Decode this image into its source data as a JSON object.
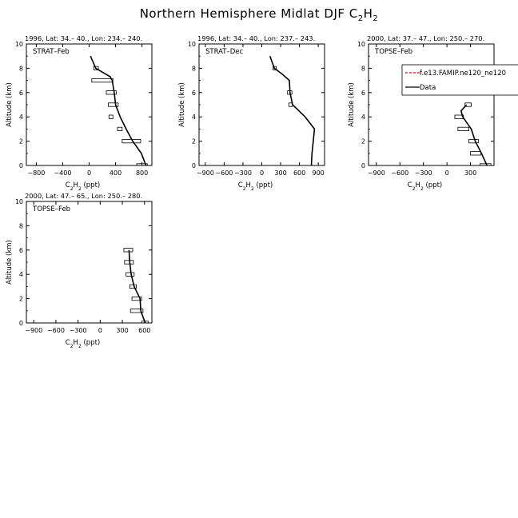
{
  "figure": {
    "title_main": "Northern Hemisphere Midlat DJF C",
    "title_sub": "2",
    "title_main2": "H",
    "title_sub2": "2"
  },
  "chart_data": [
    {
      "type": "line",
      "title": "1996, Lat: 34.– 40., Lon: 234.– 240.",
      "campaign": "STRAT–Feb",
      "xlabel": "C2H2 (ppt)",
      "ylabel": "Altitude (km)",
      "xlim": [
        -950,
        950
      ],
      "ylim": [
        0,
        10
      ],
      "xticks": [
        -800,
        -400,
        0,
        400,
        800
      ],
      "yticks": [
        0,
        2,
        4,
        6,
        8,
        10
      ],
      "series": [
        {
          "x": [
            860,
            790,
            660,
            560,
            470,
            400,
            380,
            350,
            320,
            100,
            20
          ],
          "y": [
            0,
            1,
            2,
            3,
            4,
            5,
            6,
            7,
            7.3,
            8,
            9
          ]
        }
      ],
      "errorbars": [
        {
          "y": 0,
          "lo": 720,
          "hi": 880
        },
        {
          "y": 2,
          "lo": 500,
          "hi": 780
        },
        {
          "y": 3,
          "lo": 430,
          "hi": 500
        },
        {
          "y": 4,
          "lo": 300,
          "hi": 360
        },
        {
          "y": 5,
          "lo": 290,
          "hi": 440
        },
        {
          "y": 6,
          "lo": 260,
          "hi": 410
        },
        {
          "y": 7,
          "lo": 40,
          "hi": 360
        },
        {
          "y": 8,
          "lo": 70,
          "hi": 140
        }
      ]
    },
    {
      "type": "line",
      "title": "1996, Lat: 34.– 40., Lon: 237.– 243.",
      "campaign": "STRAT–Dec",
      "xlabel": "C2H2 (ppt)",
      "ylabel": "Altitude (km)",
      "xlim": [
        -1000,
        1000
      ],
      "ylim": [
        0,
        10
      ],
      "xticks": [
        -900,
        -600,
        -300,
        0,
        300,
        600,
        900
      ],
      "yticks": [
        0,
        2,
        4,
        6,
        8,
        10
      ],
      "series": [
        {
          "x": [
            790,
            800,
            820,
            840,
            690,
            490,
            450,
            440,
            330,
            200,
            130
          ],
          "y": [
            0,
            1,
            2,
            3,
            4,
            5,
            6,
            7,
            7.5,
            8,
            9
          ]
        }
      ],
      "errorbars": [
        {
          "y": 5,
          "lo": 430,
          "hi": 490
        },
        {
          "y": 6,
          "lo": 410,
          "hi": 480
        },
        {
          "y": 8,
          "lo": 180,
          "hi": 230
        }
      ]
    },
    {
      "type": "line",
      "title": "2000, Lat: 37.– 47., Lon: 250.– 270.",
      "campaign": "TOPSE–Feb",
      "xlabel": "C2H2 (ppt)",
      "ylabel": "Altitude (km)",
      "xlim": [
        -1000,
        600
      ],
      "ylim": [
        0,
        10
      ],
      "xticks": [
        -900,
        -600,
        -300,
        0,
        300
      ],
      "yticks": [
        0,
        2,
        4,
        6,
        8,
        10
      ],
      "legend": {
        "placement": "top-right",
        "entries": [
          {
            "label": "f.e13.FAMIP.ne120_ne120",
            "color": "#ff0000",
            "dash": true
          },
          {
            "label": "Data",
            "color": "#000000",
            "dash": false
          }
        ]
      },
      "series": [
        {
          "x": [
            510,
            440,
            360,
            310,
            200,
            180,
            250
          ],
          "y": [
            0,
            1,
            2,
            3,
            4,
            4.5,
            5
          ]
        }
      ],
      "errorbars": [
        {
          "y": 0,
          "lo": 420,
          "hi": 560
        },
        {
          "y": 1,
          "lo": 300,
          "hi": 430
        },
        {
          "y": 2,
          "lo": 280,
          "hi": 400
        },
        {
          "y": 3,
          "lo": 140,
          "hi": 280
        },
        {
          "y": 4,
          "lo": 100,
          "hi": 210
        },
        {
          "y": 5,
          "lo": 230,
          "hi": 310
        }
      ]
    },
    {
      "type": "line",
      "title": "2000, Lat: 47.– 65., Lon: 250.– 280.",
      "campaign": "TOPSE–Feb",
      "xlabel": "C2H2 (ppt)",
      "ylabel": "Altitude (km)",
      "xlim": [
        -1000,
        700
      ],
      "ylim": [
        0,
        10
      ],
      "xticks": [
        -900,
        -600,
        -300,
        0,
        300,
        600
      ],
      "yticks": [
        0,
        2,
        4,
        6,
        8,
        10
      ],
      "series": [
        {
          "x": [
            610,
            550,
            540,
            460,
            420,
            400,
            390
          ],
          "y": [
            0,
            1,
            2,
            3,
            4,
            5,
            6
          ]
        }
      ],
      "errorbars": [
        {
          "y": 0,
          "lo": 560,
          "hi": 650
        },
        {
          "y": 1,
          "lo": 410,
          "hi": 580
        },
        {
          "y": 2,
          "lo": 430,
          "hi": 560
        },
        {
          "y": 3,
          "lo": 400,
          "hi": 490
        },
        {
          "y": 4,
          "lo": 350,
          "hi": 460
        },
        {
          "y": 5,
          "lo": 330,
          "hi": 450
        },
        {
          "y": 6,
          "lo": 320,
          "hi": 440
        }
      ]
    }
  ]
}
